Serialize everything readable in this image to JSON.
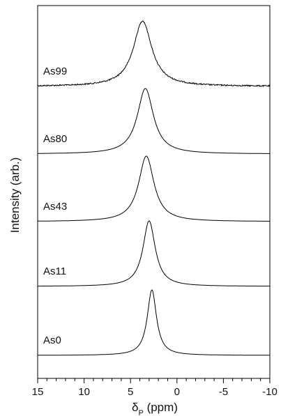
{
  "chart_data": {
    "type": "line",
    "xlabel": "δP (ppm)",
    "xlabel_main": "δ",
    "xlabel_sub": "P",
    "xlabel_units": " (ppm)",
    "ylabel": "Intensity (arb.)",
    "xlim": [
      15,
      -10
    ],
    "x_reversed": true,
    "x_ticks": [
      15,
      10,
      5,
      0,
      -5,
      -10
    ],
    "y_ticks_shown": false,
    "grid": false,
    "legend": "none",
    "series": [
      {
        "name": "As99",
        "peak_ppm": 3.7,
        "fwhm_ppm": 2.4,
        "relative_height": 1.0,
        "noisy": true
      },
      {
        "name": "As80",
        "peak_ppm": 3.4,
        "fwhm_ppm": 2.1,
        "relative_height": 1.0,
        "noisy": false
      },
      {
        "name": "As43",
        "peak_ppm": 3.3,
        "fwhm_ppm": 2.0,
        "relative_height": 1.0,
        "noisy": false
      },
      {
        "name": "As11",
        "peak_ppm": 3.0,
        "fwhm_ppm": 1.6,
        "relative_height": 1.0,
        "noisy": false
      },
      {
        "name": "As0",
        "peak_ppm": 2.7,
        "fwhm_ppm": 1.2,
        "relative_height": 1.0,
        "noisy": false
      }
    ]
  }
}
